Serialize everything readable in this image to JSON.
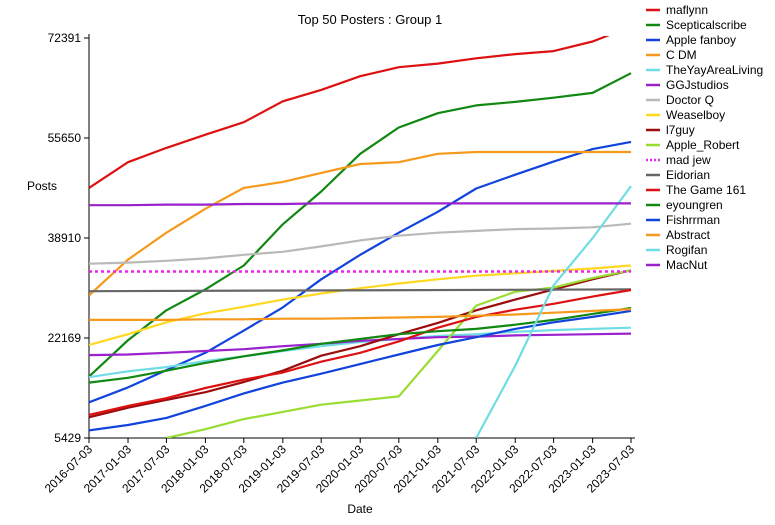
{
  "chart_data": {
    "type": "line",
    "title": "Top 50 Posters : Group 1",
    "xlabel": "Date",
    "ylabel": "Posts",
    "x_ticks": [
      "2016-07-03",
      "2017-01-03",
      "2017-07-03",
      "2018-01-03",
      "2018-07-03",
      "2019-01-03",
      "2019-07-03",
      "2020-01-03",
      "2020-07-03",
      "2021-01-03",
      "2021-07-03",
      "2022-01-03",
      "2022-07-03",
      "2023-01-03",
      "2023-07-03"
    ],
    "y_ticks": [
      "5429",
      "22169",
      "38910",
      "55650",
      "72391"
    ],
    "ylim": [
      5429,
      72391
    ],
    "grid": false,
    "legend_position": "right",
    "series": [
      {
        "name": "maflynn",
        "color": "#dd1111",
        "style": "solid",
        "x": [
          "2016-07-03",
          "2017-01-03",
          "2017-07-03",
          "2018-01-03",
          "2018-07-03",
          "2019-01-03",
          "2019-07-03",
          "2020-01-03",
          "2020-07-03",
          "2021-01-03",
          "2021-07-03",
          "2022-01-03",
          "2022-07-03",
          "2023-01-03",
          "2023-07-03"
        ],
        "y": [
          47300,
          51600,
          54000,
          56200,
          58300,
          61800,
          63700,
          66000,
          67500,
          68100,
          69000,
          69700,
          70200,
          71800,
          74300
        ]
      },
      {
        "name": "Scepticalscribe",
        "color": "#118811",
        "style": "solid",
        "x": [
          "2016-07-03",
          "2017-01-03",
          "2017-07-03",
          "2018-01-03",
          "2018-07-03",
          "2019-01-03",
          "2019-07-03",
          "2020-01-03",
          "2020-07-03",
          "2021-01-03",
          "2021-07-03",
          "2022-01-03",
          "2022-07-03",
          "2023-01-03",
          "2023-07-03"
        ],
        "y": [
          15700,
          21800,
          26800,
          30300,
          34300,
          41200,
          46700,
          53000,
          57400,
          59800,
          61100,
          61700,
          62400,
          63200,
          66500
        ]
      },
      {
        "name": "Apple fanboy",
        "color": "#1144dd",
        "style": "solid",
        "x": [
          "2016-07-03",
          "2017-01-03",
          "2017-07-03",
          "2018-01-03",
          "2018-07-03",
          "2019-01-03",
          "2019-07-03",
          "2020-01-03",
          "2020-07-03",
          "2021-01-03",
          "2021-07-03",
          "2022-01-03",
          "2022-07-03",
          "2023-01-03",
          "2023-07-03"
        ],
        "y": [
          11400,
          13900,
          16800,
          19700,
          23400,
          27300,
          32000,
          36100,
          39800,
          43300,
          47200,
          49500,
          51700,
          53800,
          55000
        ]
      },
      {
        "name": "C DM",
        "color": "#f59a1c",
        "style": "solid",
        "x": [
          "2016-07-03",
          "2017-01-03",
          "2017-07-03",
          "2018-01-03",
          "2018-07-03",
          "2019-01-03",
          "2019-07-03",
          "2020-01-03",
          "2020-07-03",
          "2021-01-03",
          "2021-07-03",
          "2022-01-03",
          "2022-07-03",
          "2023-01-03",
          "2023-07-03"
        ],
        "y": [
          29300,
          35300,
          39800,
          43800,
          47300,
          48300,
          49800,
          51300,
          51600,
          53000,
          53300,
          53300,
          53300,
          53300,
          53300
        ]
      },
      {
        "name": "TheYayAreaLiving",
        "color": "#6fdde3",
        "style": "solid",
        "x": [
          "2016-07-03",
          "2017-01-03",
          "2017-07-03",
          "2018-01-03",
          "2018-07-03",
          "2019-01-03",
          "2019-07-03",
          "2020-01-03",
          "2020-07-03",
          "2021-01-03",
          "2021-07-03",
          "2022-01-03",
          "2022-07-03",
          "2023-01-03",
          "2023-07-03"
        ],
        "y": [
          15600,
          16600,
          17300,
          18300,
          19100,
          20000,
          20800,
          21500,
          22000,
          22500,
          22800,
          23200,
          23500,
          23700,
          23900
        ]
      },
      {
        "name": "GGJstudios",
        "color": "#9922cc",
        "style": "solid",
        "x": [
          "2016-07-03",
          "2017-01-03",
          "2017-07-03",
          "2018-01-03",
          "2018-07-03",
          "2019-01-03",
          "2019-07-03",
          "2020-01-03",
          "2020-07-03",
          "2021-01-03",
          "2021-07-03",
          "2022-01-03",
          "2022-07-03",
          "2023-01-03",
          "2023-07-03"
        ],
        "y": [
          19300,
          19400,
          19700,
          20000,
          20300,
          20800,
          21200,
          21700,
          22000,
          22300,
          22400,
          22600,
          22700,
          22800,
          22900
        ]
      },
      {
        "name": "Doctor Q",
        "color": "#b9b9b9",
        "style": "solid",
        "x": [
          "2016-07-03",
          "2017-01-03",
          "2017-07-03",
          "2018-01-03",
          "2018-07-03",
          "2019-01-03",
          "2019-07-03",
          "2020-01-03",
          "2020-07-03",
          "2021-01-03",
          "2021-07-03",
          "2022-01-03",
          "2022-07-03",
          "2023-01-03",
          "2023-07-03"
        ],
        "y": [
          34600,
          34800,
          35100,
          35500,
          36100,
          36600,
          37500,
          38500,
          39300,
          39800,
          40100,
          40400,
          40500,
          40700,
          41300
        ]
      },
      {
        "name": "Weaselboy",
        "color": "#ffd81f",
        "style": "solid",
        "x": [
          "2016-07-03",
          "2017-01-03",
          "2017-07-03",
          "2018-01-03",
          "2018-07-03",
          "2019-01-03",
          "2019-07-03",
          "2020-01-03",
          "2020-07-03",
          "2021-01-03",
          "2021-07-03",
          "2022-01-03",
          "2022-07-03",
          "2023-01-03",
          "2023-07-03"
        ],
        "y": [
          21000,
          22800,
          24800,
          26300,
          27400,
          28600,
          29600,
          30500,
          31300,
          32000,
          32600,
          33000,
          33400,
          33800,
          34300
        ]
      },
      {
        "name": "l7guy",
        "color": "#9b0d0d",
        "style": "solid",
        "x": [
          "2016-07-03",
          "2017-01-03",
          "2017-07-03",
          "2018-01-03",
          "2018-07-03",
          "2019-01-03",
          "2019-07-03",
          "2020-01-03",
          "2020-07-03",
          "2021-01-03",
          "2021-07-03",
          "2022-01-03",
          "2022-07-03",
          "2023-01-03",
          "2023-07-03"
        ],
        "y": [
          8900,
          10500,
          11800,
          13100,
          14800,
          16700,
          19200,
          20800,
          22800,
          24700,
          26800,
          28600,
          30300,
          32000,
          33500
        ]
      },
      {
        "name": "Apple_Robert",
        "color": "#99dd33",
        "style": "solid",
        "x": [
          "2017-07-03",
          "2018-01-03",
          "2018-07-03",
          "2019-01-03",
          "2019-07-03",
          "2020-01-03",
          "2020-07-03",
          "2021-01-03",
          "2021-07-03",
          "2022-01-03",
          "2022-07-03",
          "2023-01-03",
          "2023-07-03"
        ],
        "y": [
          5429,
          6900,
          8600,
          9800,
          11000,
          11700,
          12400,
          20000,
          27600,
          29900,
          30600,
          32200,
          33500
        ]
      },
      {
        "name": "mad jew",
        "color": "#ee22ee",
        "style": "dotted",
        "x": [
          "2016-07-03",
          "2023-07-03"
        ],
        "y": [
          33300,
          33300
        ]
      },
      {
        "name": "Eidorian",
        "color": "#666666",
        "style": "solid",
        "x": [
          "2016-07-03",
          "2023-07-03"
        ],
        "y": [
          30000,
          30300
        ]
      },
      {
        "name": "The Game 161",
        "color": "#dd1111",
        "style": "solid",
        "x": [
          "2016-07-03",
          "2017-01-03",
          "2017-07-03",
          "2018-01-03",
          "2018-07-03",
          "2019-01-03",
          "2019-07-03",
          "2020-01-03",
          "2020-07-03",
          "2021-01-03",
          "2021-07-03",
          "2022-01-03",
          "2022-07-03",
          "2023-01-03",
          "2023-07-03"
        ],
        "y": [
          9300,
          10800,
          12100,
          13800,
          15200,
          16400,
          18200,
          19700,
          21600,
          23900,
          25700,
          26900,
          27900,
          29100,
          30200
        ]
      },
      {
        "name": "eyoungren",
        "color": "#118811",
        "style": "solid",
        "x": [
          "2016-07-03",
          "2017-01-03",
          "2017-07-03",
          "2018-01-03",
          "2018-07-03",
          "2019-01-03",
          "2019-07-03",
          "2020-01-03",
          "2020-07-03",
          "2021-01-03",
          "2021-07-03",
          "2022-01-03",
          "2022-07-03",
          "2023-01-03",
          "2023-07-03"
        ],
        "y": [
          14700,
          15500,
          16700,
          18000,
          19100,
          20100,
          21200,
          22000,
          22800,
          23300,
          23700,
          24400,
          25200,
          26200,
          27200
        ]
      },
      {
        "name": "Fishrrman",
        "color": "#1144dd",
        "style": "solid",
        "x": [
          "2016-07-03",
          "2017-01-03",
          "2017-07-03",
          "2018-01-03",
          "2018-07-03",
          "2019-01-03",
          "2019-07-03",
          "2020-01-03",
          "2020-07-03",
          "2021-01-03",
          "2021-07-03",
          "2022-01-03",
          "2022-07-03",
          "2023-01-03",
          "2023-07-03"
        ],
        "y": [
          6700,
          7600,
          8800,
          10800,
          12900,
          14700,
          16200,
          17800,
          19400,
          21000,
          22300,
          23700,
          24800,
          25700,
          26700
        ]
      },
      {
        "name": "Abstract",
        "color": "#f59a1c",
        "style": "solid",
        "x": [
          "2016-07-03",
          "2017-01-03",
          "2017-07-03",
          "2018-01-03",
          "2018-07-03",
          "2019-01-03",
          "2019-07-03",
          "2020-01-03",
          "2020-07-03",
          "2021-01-03",
          "2021-07-03",
          "2022-01-03",
          "2022-07-03",
          "2023-01-03",
          "2023-07-03"
        ],
        "y": [
          25200,
          25200,
          25200,
          25300,
          25300,
          25400,
          25400,
          25500,
          25600,
          25700,
          25900,
          26100,
          26400,
          26700,
          27000
        ]
      },
      {
        "name": "Rogifan",
        "color": "#6fdde3",
        "style": "solid",
        "x": [
          "2021-07-03",
          "2022-01-03",
          "2022-07-03",
          "2023-01-03",
          "2023-07-03"
        ],
        "y": [
          5429,
          17500,
          31000,
          38900,
          47600
        ]
      },
      {
        "name": "MacNut",
        "color": "#9922cc",
        "style": "solid",
        "x": [
          "2016-07-03",
          "2017-01-03",
          "2017-07-03",
          "2018-01-03",
          "2018-07-03",
          "2019-01-03",
          "2019-07-03",
          "2020-01-03",
          "2020-07-03",
          "2021-01-03",
          "2021-07-03",
          "2022-01-03",
          "2022-07-03",
          "2023-01-03",
          "2023-07-03"
        ],
        "y": [
          44400,
          44400,
          44500,
          44500,
          44600,
          44600,
          44700,
          44700,
          44700,
          44700,
          44700,
          44700,
          44700,
          44700,
          44700
        ]
      }
    ]
  }
}
